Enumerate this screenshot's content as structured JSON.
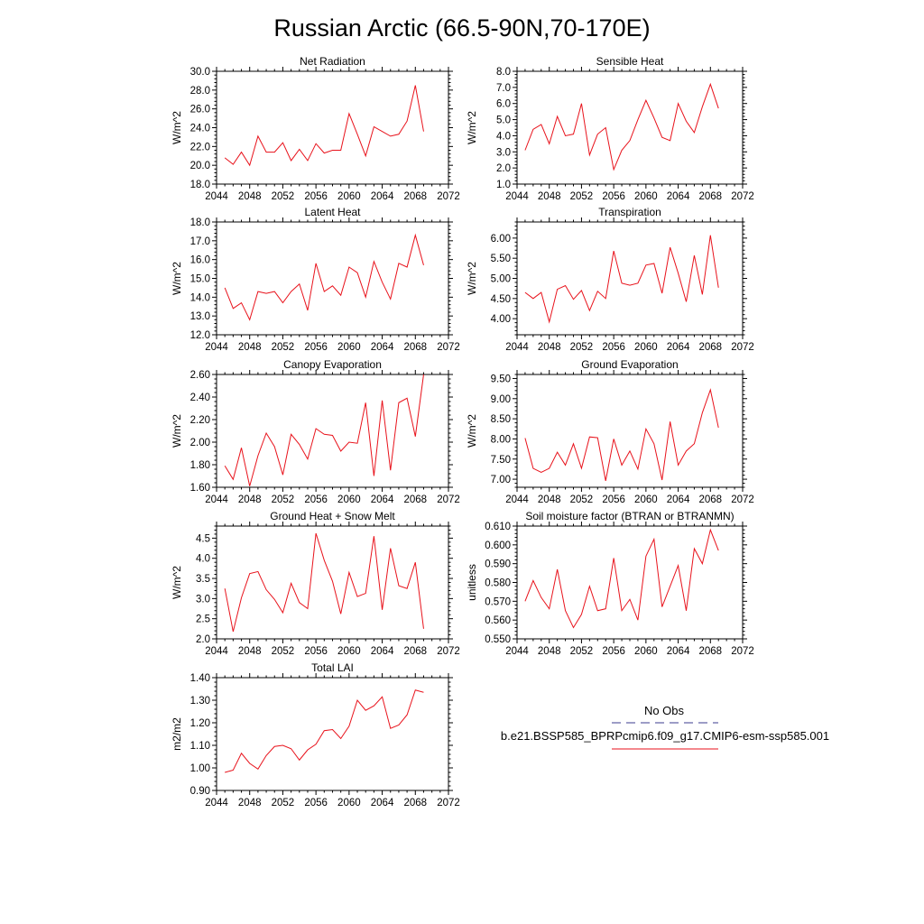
{
  "title": "Russian Arctic (66.5-90N,70-170E)",
  "legend": {
    "entries": [
      {
        "label": "No Obs",
        "color": "#3b3b8f",
        "dash": true
      },
      {
        "label": "b.e21.BSSP585_BPRPcmip6.f09_g17.CMIP6-esm-ssp585.001",
        "color": "#e8121b",
        "dash": false
      }
    ]
  },
  "chart_data": [
    {
      "type": "line",
      "title": "Net Radiation",
      "ylabel": "W/m^2",
      "xlim": [
        2044,
        2072
      ],
      "ylim": [
        18.0,
        30.0
      ],
      "xticks": [
        2044,
        2048,
        2052,
        2056,
        2060,
        2064,
        2068,
        2072
      ],
      "xticklabels": [
        "2044",
        "2048",
        "2052",
        "2056",
        "2060",
        "2064",
        "2068",
        "2072"
      ],
      "yticks": [
        18.0,
        20.0,
        22.0,
        24.0,
        26.0,
        28.0,
        30.0
      ],
      "yticklabels": [
        "18.0",
        "20.0",
        "22.0",
        "24.0",
        "26.0",
        "28.0",
        "30.0"
      ],
      "x": [
        2045,
        2046,
        2047,
        2048,
        2049,
        2050,
        2051,
        2052,
        2053,
        2054,
        2055,
        2056,
        2057,
        2058,
        2059,
        2060,
        2061,
        2062,
        2063,
        2064,
        2065,
        2066,
        2067,
        2068,
        2069
      ],
      "series": [
        {
          "color": "#e8121b",
          "values": [
            20.8,
            20.1,
            21.4,
            20.0,
            23.1,
            21.4,
            21.4,
            22.4,
            20.5,
            21.7,
            20.5,
            22.3,
            21.3,
            21.6,
            21.6,
            25.5,
            23.3,
            21.0,
            24.1,
            23.6,
            23.1,
            23.3,
            24.7,
            28.5,
            23.6
          ]
        }
      ]
    },
    {
      "type": "line",
      "title": "Sensible Heat",
      "ylabel": "W/m^2",
      "xlim": [
        2044,
        2072
      ],
      "ylim": [
        1.0,
        8.0
      ],
      "xticks": [
        2044,
        2048,
        2052,
        2056,
        2060,
        2064,
        2068,
        2072
      ],
      "xticklabels": [
        "2044",
        "2048",
        "2052",
        "2056",
        "2060",
        "2064",
        "2068",
        "2072"
      ],
      "yticks": [
        1.0,
        2.0,
        3.0,
        4.0,
        5.0,
        6.0,
        7.0,
        8.0
      ],
      "yticklabels": [
        "1.0",
        "2.0",
        "3.0",
        "4.0",
        "5.0",
        "6.0",
        "7.0",
        "8.0"
      ],
      "x": [
        2045,
        2046,
        2047,
        2048,
        2049,
        2050,
        2051,
        2052,
        2053,
        2054,
        2055,
        2056,
        2057,
        2058,
        2059,
        2060,
        2061,
        2062,
        2063,
        2064,
        2065,
        2066,
        2067,
        2068,
        2069
      ],
      "series": [
        {
          "color": "#e8121b",
          "values": [
            3.1,
            4.4,
            4.7,
            3.5,
            5.2,
            4.0,
            4.1,
            6.0,
            2.8,
            4.1,
            4.5,
            1.9,
            3.1,
            3.7,
            5.0,
            6.2,
            5.1,
            3.9,
            3.7,
            6.0,
            4.9,
            4.2,
            5.8,
            7.2,
            5.7
          ]
        }
      ]
    },
    {
      "type": "line",
      "title": "Latent Heat",
      "ylabel": "W/m^2",
      "xlim": [
        2044,
        2072
      ],
      "ylim": [
        12.0,
        18.0
      ],
      "xticks": [
        2044,
        2048,
        2052,
        2056,
        2060,
        2064,
        2068,
        2072
      ],
      "xticklabels": [
        "2044",
        "2048",
        "2052",
        "2056",
        "2060",
        "2064",
        "2068",
        "2072"
      ],
      "yticks": [
        12.0,
        13.0,
        14.0,
        15.0,
        16.0,
        17.0,
        18.0
      ],
      "yticklabels": [
        "12.0",
        "13.0",
        "14.0",
        "15.0",
        "16.0",
        "17.0",
        "18.0"
      ],
      "x": [
        2045,
        2046,
        2047,
        2048,
        2049,
        2050,
        2051,
        2052,
        2053,
        2054,
        2055,
        2056,
        2057,
        2058,
        2059,
        2060,
        2061,
        2062,
        2063,
        2064,
        2065,
        2066,
        2067,
        2068,
        2069
      ],
      "series": [
        {
          "color": "#e8121b",
          "values": [
            14.5,
            13.4,
            13.7,
            12.8,
            14.3,
            14.2,
            14.3,
            13.7,
            14.3,
            14.7,
            13.3,
            15.8,
            14.3,
            14.6,
            14.1,
            15.6,
            15.3,
            14.0,
            15.9,
            14.8,
            13.9,
            15.8,
            15.6,
            17.3,
            15.7
          ]
        }
      ]
    },
    {
      "type": "line",
      "title": "Transpiration",
      "ylabel": "W/m^2",
      "xlim": [
        2044,
        2072
      ],
      "ylim": [
        3.6,
        6.4
      ],
      "xticks": [
        2044,
        2048,
        2052,
        2056,
        2060,
        2064,
        2068,
        2072
      ],
      "xticklabels": [
        "2044",
        "2048",
        "2052",
        "2056",
        "2060",
        "2064",
        "2068",
        "2072"
      ],
      "yticks": [
        4.0,
        4.5,
        5.0,
        5.5,
        6.0
      ],
      "yticklabels": [
        "4.00",
        "4.50",
        "5.00",
        "5.50",
        "6.00"
      ],
      "x": [
        2045,
        2046,
        2047,
        2048,
        2049,
        2050,
        2051,
        2052,
        2053,
        2054,
        2055,
        2056,
        2057,
        2058,
        2059,
        2060,
        2061,
        2062,
        2063,
        2064,
        2065,
        2066,
        2067,
        2068,
        2069
      ],
      "series": [
        {
          "color": "#e8121b",
          "values": [
            4.65,
            4.5,
            4.65,
            3.92,
            4.73,
            4.82,
            4.48,
            4.7,
            4.2,
            4.68,
            4.5,
            5.68,
            4.88,
            4.83,
            4.88,
            5.33,
            5.37,
            4.63,
            5.77,
            5.13,
            4.42,
            5.57,
            4.6,
            6.07,
            4.77
          ]
        }
      ]
    },
    {
      "type": "line",
      "title": "Canopy Evaporation",
      "ylabel": "W/m^2",
      "xlim": [
        2044,
        2072
      ],
      "ylim": [
        1.6,
        2.6
      ],
      "xticks": [
        2044,
        2048,
        2052,
        2056,
        2060,
        2064,
        2068,
        2072
      ],
      "xticklabels": [
        "2044",
        "2048",
        "2052",
        "2056",
        "2060",
        "2064",
        "2068",
        "2072"
      ],
      "yticks": [
        1.6,
        1.8,
        2.0,
        2.2,
        2.4,
        2.6
      ],
      "yticklabels": [
        "1.60",
        "1.80",
        "2.00",
        "2.20",
        "2.40",
        "2.60"
      ],
      "x": [
        2045,
        2046,
        2047,
        2048,
        2049,
        2050,
        2051,
        2052,
        2053,
        2054,
        2055,
        2056,
        2057,
        2058,
        2059,
        2060,
        2061,
        2062,
        2063,
        2064,
        2065,
        2066,
        2067,
        2068,
        2069
      ],
      "series": [
        {
          "color": "#e8121b",
          "values": [
            1.79,
            1.67,
            1.95,
            1.61,
            1.88,
            2.08,
            1.96,
            1.71,
            2.07,
            1.98,
            1.85,
            2.12,
            2.07,
            2.06,
            1.92,
            2.0,
            1.99,
            2.35,
            1.7,
            2.37,
            1.75,
            2.35,
            2.39,
            2.05,
            2.6
          ]
        }
      ]
    },
    {
      "type": "line",
      "title": "Ground Evaporation",
      "ylabel": "W/m^2",
      "xlim": [
        2044,
        2072
      ],
      "ylim": [
        6.8,
        9.6
      ],
      "xticks": [
        2044,
        2048,
        2052,
        2056,
        2060,
        2064,
        2068,
        2072
      ],
      "xticklabels": [
        "2044",
        "2048",
        "2052",
        "2056",
        "2060",
        "2064",
        "2068",
        "2072"
      ],
      "yticks": [
        7.0,
        7.5,
        8.0,
        8.5,
        9.0,
        9.5
      ],
      "yticklabels": [
        "7.00",
        "7.50",
        "8.00",
        "8.50",
        "9.00",
        "9.50"
      ],
      "x": [
        2045,
        2046,
        2047,
        2048,
        2049,
        2050,
        2051,
        2052,
        2053,
        2054,
        2055,
        2056,
        2057,
        2058,
        2059,
        2060,
        2061,
        2062,
        2063,
        2064,
        2065,
        2066,
        2067,
        2068,
        2069
      ],
      "series": [
        {
          "color": "#e8121b",
          "values": [
            8.02,
            7.27,
            7.17,
            7.27,
            7.67,
            7.35,
            7.88,
            7.27,
            8.05,
            8.03,
            6.96,
            8.0,
            7.35,
            7.7,
            7.25,
            8.25,
            7.88,
            6.98,
            8.43,
            7.35,
            7.7,
            7.88,
            8.65,
            9.22,
            8.28
          ]
        }
      ]
    },
    {
      "type": "line",
      "title": "Ground Heat + Snow Melt",
      "ylabel": "W/m^2",
      "xlim": [
        2044,
        2072
      ],
      "ylim": [
        2.0,
        4.8
      ],
      "xticks": [
        2044,
        2048,
        2052,
        2056,
        2060,
        2064,
        2068,
        2072
      ],
      "xticklabels": [
        "2044",
        "2048",
        "2052",
        "2056",
        "2060",
        "2064",
        "2068",
        "2072"
      ],
      "yticks": [
        2.0,
        2.5,
        3.0,
        3.5,
        4.0,
        4.5
      ],
      "yticklabels": [
        "2.0",
        "2.5",
        "3.0",
        "3.5",
        "4.0",
        "4.5"
      ],
      "x": [
        2045,
        2046,
        2047,
        2048,
        2049,
        2050,
        2051,
        2052,
        2053,
        2054,
        2055,
        2056,
        2057,
        2058,
        2059,
        2060,
        2061,
        2062,
        2063,
        2064,
        2065,
        2066,
        2067,
        2068,
        2069
      ],
      "series": [
        {
          "color": "#e8121b",
          "values": [
            3.25,
            2.18,
            3.02,
            3.62,
            3.67,
            3.22,
            2.98,
            2.65,
            3.38,
            2.9,
            2.75,
            4.62,
            3.95,
            3.43,
            2.62,
            3.65,
            3.05,
            3.13,
            4.55,
            2.72,
            4.25,
            3.32,
            3.25,
            3.9,
            2.25
          ]
        }
      ]
    },
    {
      "type": "line",
      "title": "Soil moisture factor (BTRAN or BTRANMN)",
      "ylabel": "unitless",
      "xlim": [
        2044,
        2072
      ],
      "ylim": [
        0.55,
        0.61
      ],
      "xticks": [
        2044,
        2048,
        2052,
        2056,
        2060,
        2064,
        2068,
        2072
      ],
      "xticklabels": [
        "2044",
        "2048",
        "2052",
        "2056",
        "2060",
        "2064",
        "2068",
        "2072"
      ],
      "yticks": [
        0.55,
        0.56,
        0.57,
        0.58,
        0.59,
        0.6,
        0.61
      ],
      "yticklabels": [
        "0.550",
        "0.560",
        "0.570",
        "0.580",
        "0.590",
        "0.600",
        "0.610"
      ],
      "x": [
        2045,
        2046,
        2047,
        2048,
        2049,
        2050,
        2051,
        2052,
        2053,
        2054,
        2055,
        2056,
        2057,
        2058,
        2059,
        2060,
        2061,
        2062,
        2063,
        2064,
        2065,
        2066,
        2067,
        2068,
        2069
      ],
      "series": [
        {
          "color": "#e8121b",
          "values": [
            0.57,
            0.581,
            0.572,
            0.566,
            0.587,
            0.565,
            0.556,
            0.563,
            0.578,
            0.565,
            0.566,
            0.593,
            0.565,
            0.571,
            0.56,
            0.594,
            0.603,
            0.567,
            0.578,
            0.589,
            0.565,
            0.598,
            0.59,
            0.608,
            0.597
          ]
        }
      ]
    },
    {
      "type": "line",
      "title": "Total LAI",
      "ylabel": "m2/m2",
      "xlim": [
        2044,
        2072
      ],
      "ylim": [
        0.9,
        1.4
      ],
      "xticks": [
        2044,
        2048,
        2052,
        2056,
        2060,
        2064,
        2068,
        2072
      ],
      "xticklabels": [
        "2044",
        "2048",
        "2052",
        "2056",
        "2060",
        "2064",
        "2068",
        "2072"
      ],
      "yticks": [
        0.9,
        1.0,
        1.1,
        1.2,
        1.3,
        1.4
      ],
      "yticklabels": [
        "0.90",
        "1.00",
        "1.10",
        "1.20",
        "1.30",
        "1.40"
      ],
      "x": [
        2045,
        2046,
        2047,
        2048,
        2049,
        2050,
        2051,
        2052,
        2053,
        2054,
        2055,
        2056,
        2057,
        2058,
        2059,
        2060,
        2061,
        2062,
        2063,
        2064,
        2065,
        2066,
        2067,
        2068,
        2069
      ],
      "series": [
        {
          "color": "#e8121b",
          "values": [
            0.98,
            0.99,
            1.065,
            1.02,
            0.995,
            1.055,
            1.095,
            1.1,
            1.085,
            1.035,
            1.08,
            1.105,
            1.165,
            1.17,
            1.13,
            1.185,
            1.3,
            1.255,
            1.275,
            1.315,
            1.175,
            1.19,
            1.235,
            1.345,
            1.335
          ]
        }
      ]
    }
  ]
}
